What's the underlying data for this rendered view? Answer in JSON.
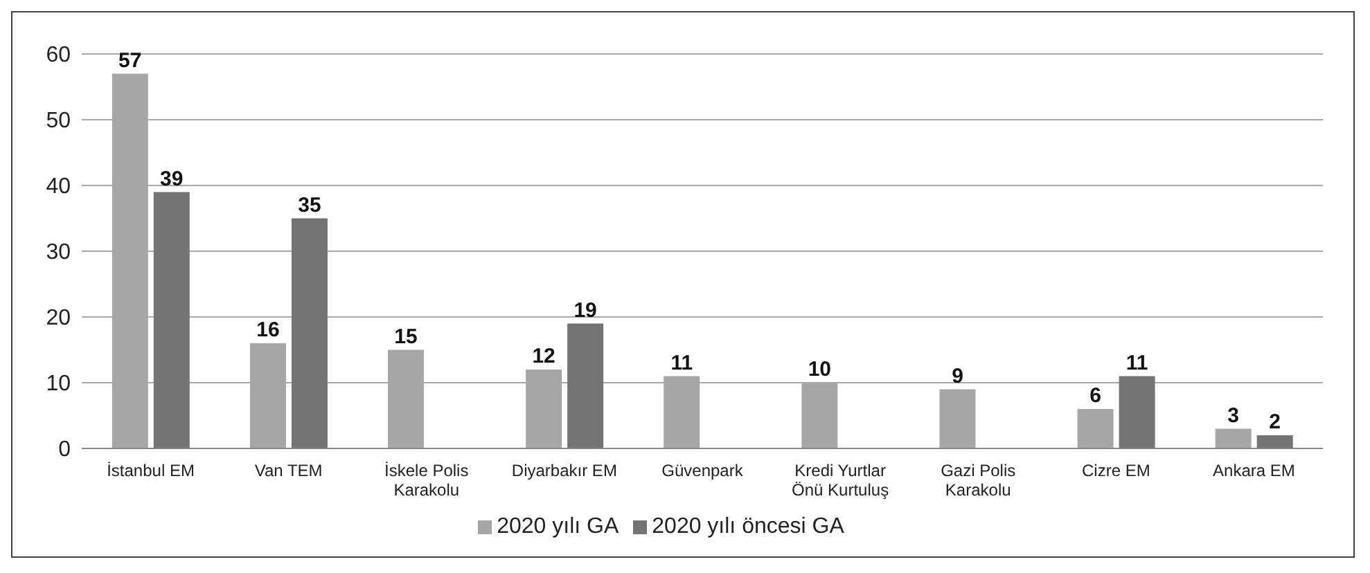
{
  "chart_data": {
    "type": "bar",
    "categories": [
      "İstanbul EM",
      "Van TEM",
      "İskele Polis Karakolu",
      "Diyarbakır EM",
      "Güvenpark",
      "Kredi Yurtlar Önü Kurtuluş",
      "Gazi Polis Karakolu",
      "Cizre EM",
      "Ankara EM"
    ],
    "series": [
      {
        "name": "2020 yılı GA",
        "color": "#a6a6a6",
        "values": [
          57,
          16,
          15,
          12,
          11,
          10,
          9,
          6,
          3
        ]
      },
      {
        "name": "2020 yılı öncesi GA",
        "color": "#737373",
        "values": [
          39,
          35,
          null,
          19,
          null,
          null,
          null,
          11,
          2
        ]
      }
    ],
    "ylim": [
      0,
      60
    ],
    "yticks": [
      0,
      10,
      20,
      30,
      40,
      50,
      60
    ],
    "grid": "y",
    "legend": "bottom",
    "data_labels": true
  }
}
